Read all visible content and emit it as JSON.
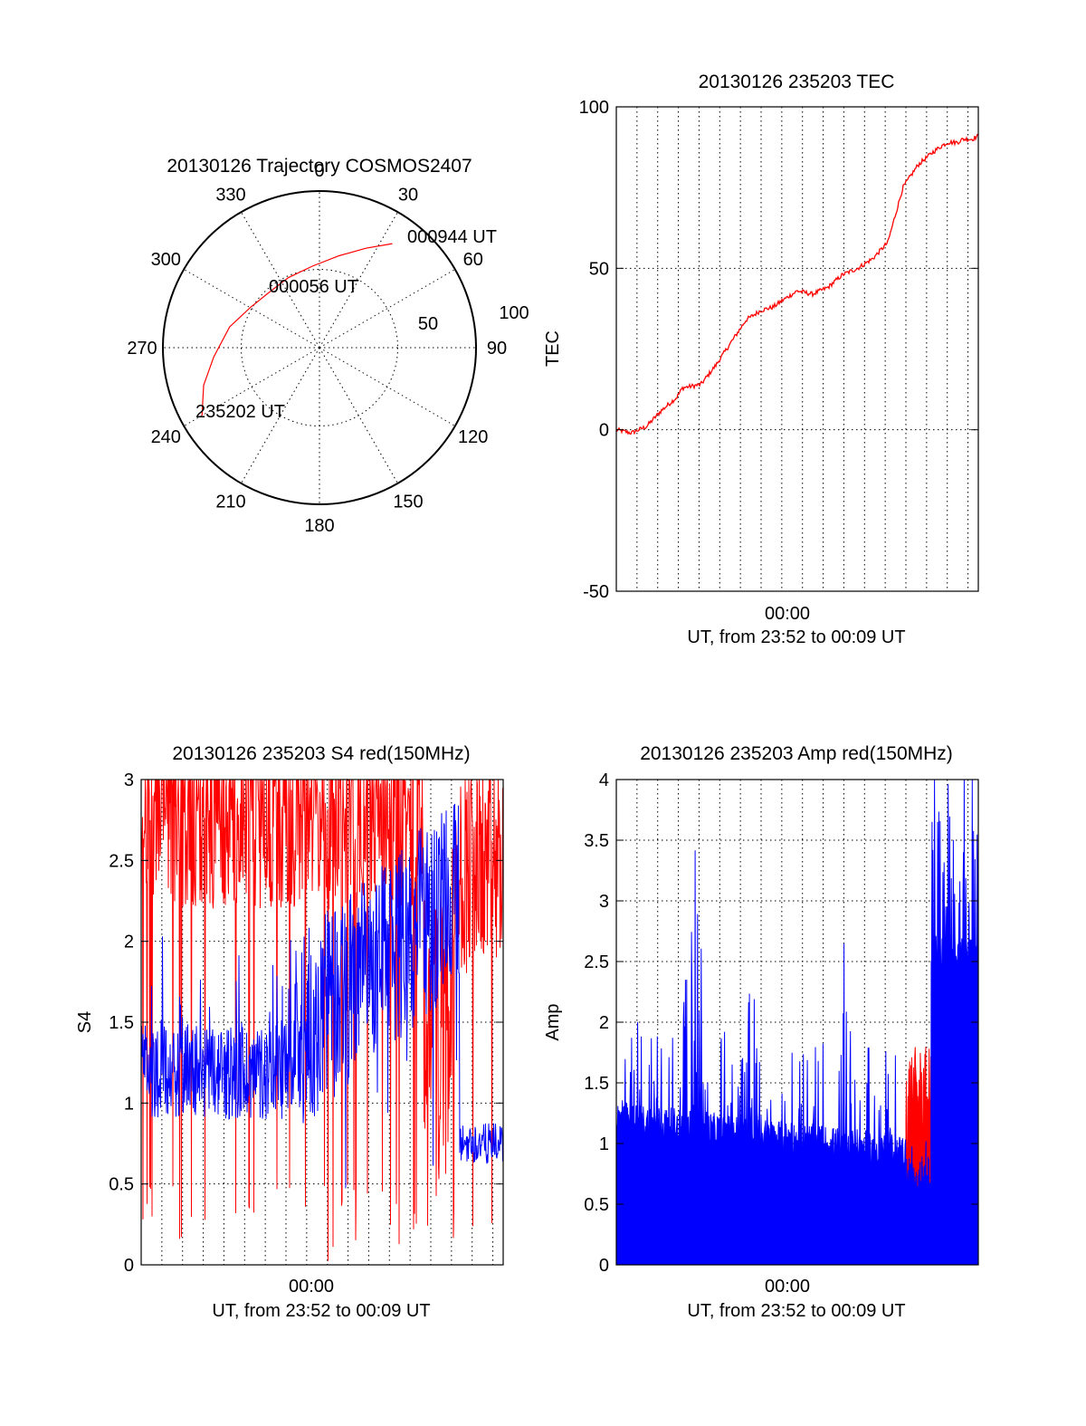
{
  "chart_data": [
    {
      "type": "polar",
      "title": "20130126 Trajectory COSMOS2407",
      "angle_labels": [
        "0",
        "30",
        "60",
        "90",
        "120",
        "150",
        "180",
        "210",
        "240",
        "270",
        "300",
        "330"
      ],
      "radial_labels": [
        "50",
        "100"
      ],
      "rlim": [
        0,
        90
      ],
      "trajectory": {
        "color": "#ff0000",
        "points": [
          {
            "az": 240,
            "el": 12
          },
          {
            "az": 252,
            "el": 20
          },
          {
            "az": 265,
            "el": 29
          },
          {
            "az": 283,
            "el": 37
          },
          {
            "az": 300,
            "el": 44
          },
          {
            "az": 318,
            "el": 47
          },
          {
            "az": 336,
            "el": 46
          },
          {
            "az": 355,
            "el": 43
          },
          {
            "az": 12,
            "el": 36
          },
          {
            "az": 25,
            "el": 27
          },
          {
            "az": 35,
            "el": 17
          }
        ]
      },
      "annotations": [
        "000944 UT",
        "000056 UT",
        "235202 UT"
      ]
    },
    {
      "type": "line",
      "title": "20130126 235203 TEC",
      "xlabel": "UT, from 23:52 to 00:09 UT",
      "ylabel": "TEC",
      "x_tick_label": "00:00",
      "ylim": [
        -50,
        100
      ],
      "yticks": [
        "100",
        "50",
        "0",
        "-50"
      ],
      "grid": true,
      "series": [
        {
          "color": "#ff0000",
          "x": [
            0,
            5,
            10,
            15,
            20,
            22,
            28,
            33,
            38,
            43,
            48,
            52,
            55,
            60,
            65,
            70,
            75,
            80,
            85,
            90,
            95,
            100,
            105,
            108,
            110,
            113,
            115,
            118,
            120
          ],
          "y": [
            0,
            -1,
            1,
            6,
            10,
            13,
            14,
            20,
            27,
            34,
            37,
            38,
            40,
            43,
            42,
            44,
            48,
            50,
            53,
            58,
            75,
            82,
            86,
            88,
            89,
            89,
            90,
            90,
            91
          ]
        }
      ]
    },
    {
      "type": "line",
      "title": "20130126 235203 S4 red(150MHz)",
      "xlabel": "UT, from 23:52 to 00:09 UT",
      "ylabel": "S4",
      "x_tick_label": "00:00",
      "ylim": [
        0,
        3
      ],
      "yticks": [
        "3",
        "2.5",
        "2",
        "1.5",
        "1",
        "0.5",
        "0"
      ],
      "grid": true,
      "series": [
        {
          "color": "#ff0000",
          "pattern": "high-noise",
          "level": 2.7,
          "spread": 0.8
        },
        {
          "color": "#0000ff",
          "pattern": "noisy",
          "level": 1.2,
          "spread": 0.35
        }
      ]
    },
    {
      "type": "area",
      "title": "20130126 235203 Amp red(150MHz)",
      "xlabel": "UT, from 23:52 to 00:09 UT",
      "ylabel": "Amp",
      "x_tick_label": "00:00",
      "ylim": [
        0,
        4
      ],
      "yticks": [
        "4",
        "3.5",
        "3",
        "2.5",
        "2",
        "1.5",
        "1",
        "0.5",
        "0"
      ],
      "grid": true,
      "series": [
        {
          "color": "#ff0000",
          "pattern": "burst",
          "x_range": [
            0.8,
            0.87
          ],
          "level": 1.2
        },
        {
          "color": "#0000ff",
          "pattern": "filled-noise",
          "level": 1.1
        }
      ]
    }
  ]
}
